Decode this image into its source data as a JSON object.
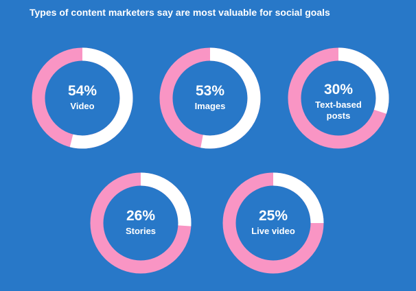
{
  "colors": {
    "background": "#2878c8",
    "value_arc": "#ffffff",
    "remainder_arc": "#f995c4",
    "text": "#ffffff"
  },
  "chart_data": {
    "type": "pie",
    "title": "Types of content marketers say are most valuable for social goals",
    "categories": [
      "Video",
      "Images",
      "Text-based posts",
      "Stories",
      "Live video"
    ],
    "values": [
      54,
      53,
      30,
      26,
      25
    ],
    "value_labels": [
      "54%",
      "53%",
      "30%",
      "26%",
      "25%"
    ],
    "label_lines": [
      [
        "Video"
      ],
      [
        "Images"
      ],
      [
        "Text-based",
        "posts"
      ],
      [
        "Stories"
      ],
      [
        "Live video"
      ]
    ],
    "unit": "%",
    "legend": "none"
  }
}
